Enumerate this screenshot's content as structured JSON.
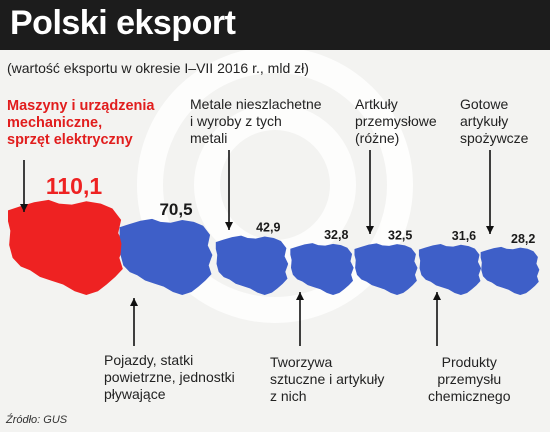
{
  "title": "Polski eksport",
  "subtitle": "(wartość eksportu w okresie I–VII 2016 r., mld zł)",
  "source": "Źródło: GUS",
  "colors": {
    "highlight": "#ee2222",
    "map": "#3e5fc8",
    "title_bar": "#1c1c1c",
    "background": "#f3f3f1"
  },
  "chart_data": {
    "type": "bar",
    "mark": "poland-map-silhouette scaled by value",
    "unit": "mld zł",
    "categories": [
      [
        "Maszyny i urządzenia",
        "mechaniczne,",
        "sprzęt elektryczny"
      ],
      [
        "Pojazdy, statki",
        "powietrzne, jednostki",
        "pływające"
      ],
      [
        "Metale nieszlachetne",
        "i wyroby z tych",
        "metali"
      ],
      [
        "Tworzywa",
        "sztuczne i artykuły",
        "z nich"
      ],
      [
        "Artkuły",
        "przemysłowe",
        "(różne)"
      ],
      [
        "Produkty",
        "przemysłu",
        "chemicznego"
      ],
      [
        "Gotowe",
        "artykuły",
        "spożywcze"
      ]
    ],
    "values": [
      110.1,
      70.5,
      42.9,
      32.8,
      32.5,
      31.6,
      28.2
    ],
    "value_labels": [
      "110,1",
      "70,5",
      "42,9",
      "32,8",
      "32,5",
      "31,6",
      "28,2"
    ],
    "highlight_index": 0
  }
}
